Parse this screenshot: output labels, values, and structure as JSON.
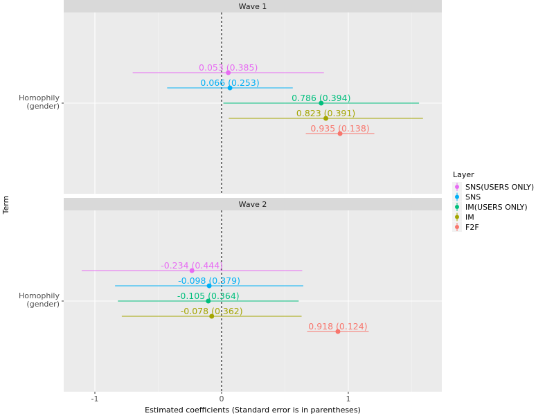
{
  "chart_data": {
    "type": "forest",
    "xlabel": "Estimated coefficients (Standard error is in parentheses)",
    "ylabel": "Term",
    "xlim": [
      -1.246,
      1.738
    ],
    "x_ticks": [
      -1,
      0,
      1
    ],
    "x_tick_labels": [
      "-1",
      "0",
      "1"
    ],
    "reference_line": 0,
    "grid": true,
    "interval": "estimate ± 1.96 × SE",
    "legend": {
      "title": "Layer",
      "placement": "right",
      "entries": [
        {
          "name": "SNS(USERS ONLY)",
          "color": "#E76BF3"
        },
        {
          "name": "SNS",
          "color": "#00B0F6"
        },
        {
          "name": "IM(USERS ONLY)",
          "color": "#00BF7D"
        },
        {
          "name": "IM",
          "color": "#A3A500"
        },
        {
          "name": "F2F",
          "color": "#F8766D"
        }
      ]
    },
    "panels": [
      {
        "title": "Wave 1",
        "term": "Homophily\n(gender)",
        "term_lines": [
          "Homophily",
          "(gender)"
        ],
        "points": [
          {
            "layer": "SNS(USERS ONLY)",
            "estimate": 0.053,
            "se": 0.385,
            "label": "0.053 (0.385)"
          },
          {
            "layer": "SNS",
            "estimate": 0.066,
            "se": 0.253,
            "label": "0.066 (0.253)"
          },
          {
            "layer": "IM(USERS ONLY)",
            "estimate": 0.786,
            "se": 0.394,
            "label": "0.786 (0.394)"
          },
          {
            "layer": "IM",
            "estimate": 0.823,
            "se": 0.391,
            "label": "0.823 (0.391)"
          },
          {
            "layer": "F2F",
            "estimate": 0.935,
            "se": 0.138,
            "label": "0.935 (0.138)"
          }
        ]
      },
      {
        "title": "Wave 2",
        "term": "Homophily\n(gender)",
        "term_lines": [
          "Homophily",
          "(gender)"
        ],
        "points": [
          {
            "layer": "SNS(USERS ONLY)",
            "estimate": -0.234,
            "se": 0.444,
            "label": "-0.234 (0.444)"
          },
          {
            "layer": "SNS",
            "estimate": -0.098,
            "se": 0.379,
            "label": "-0.098 (0.379)"
          },
          {
            "layer": "IM(USERS ONLY)",
            "estimate": -0.105,
            "se": 0.364,
            "label": "-0.105 (0.364)"
          },
          {
            "layer": "IM",
            "estimate": -0.078,
            "se": 0.362,
            "label": "-0.078 (0.362)"
          },
          {
            "layer": "F2F",
            "estimate": 0.918,
            "se": 0.124,
            "label": "0.918 (0.124)"
          }
        ]
      }
    ]
  }
}
